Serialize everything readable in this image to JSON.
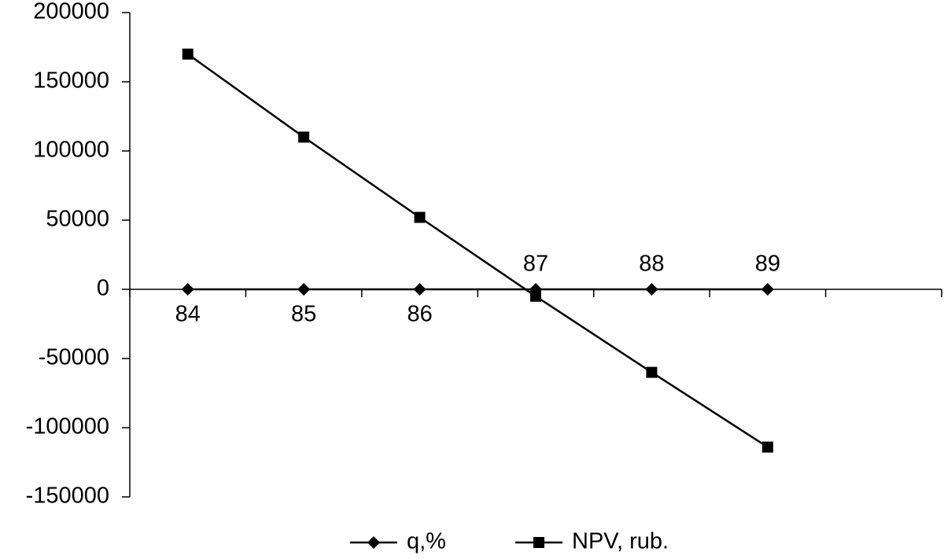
{
  "chart_data": {
    "type": "line",
    "categories": [
      "84",
      "85",
      "86",
      "87",
      "88",
      "89",
      null
    ],
    "series": [
      {
        "name": "q,%",
        "color": "#000000",
        "marker": "diamond",
        "values": [
          0,
          0,
          0,
          0,
          0,
          0,
          null
        ]
      },
      {
        "name": "NPV, rub.",
        "color": "#000000",
        "marker": "square",
        "values": [
          170000,
          110000,
          52000,
          -5000,
          -60000,
          -114000,
          null
        ]
      }
    ],
    "ylim": [
      -150000,
      200000
    ],
    "yticks": [
      -150000,
      -100000,
      -50000,
      0,
      50000,
      100000,
      150000,
      200000
    ],
    "grid": false,
    "legend": "bottom"
  }
}
